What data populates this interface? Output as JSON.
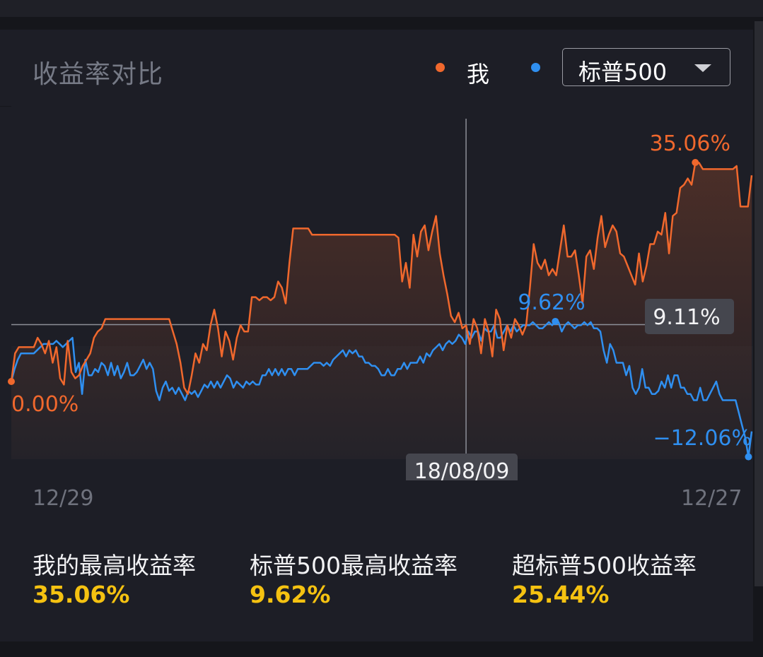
{
  "header": {
    "title": "收益率对比",
    "legend": [
      {
        "label": "我",
        "color": "#f0682d"
      },
      {
        "label": "",
        "color": "#2f8ff0"
      }
    ],
    "benchmark_select": {
      "value": "标普500"
    }
  },
  "chart_data": {
    "type": "line",
    "x_start": "12/29",
    "x_end": "12/27",
    "ylim": [
      -15,
      40
    ],
    "grid": false,
    "series": [
      {
        "name": "我",
        "color": "#f0682d",
        "values": [
          0,
          4.5,
          5.5,
          5.5,
          5.5,
          5.5,
          5.5,
          7,
          6,
          4.5,
          6.5,
          3,
          5.5,
          0.5,
          -0.5,
          6.5,
          1.5,
          0.5,
          1,
          2.5,
          3.5,
          4.5,
          7,
          8,
          8.5,
          10,
          10,
          10,
          10,
          10,
          10,
          10,
          10,
          10,
          10,
          10,
          10,
          10,
          10,
          10,
          10,
          10,
          10,
          8,
          6,
          3,
          -1,
          -2,
          1,
          4.5,
          3,
          6,
          5,
          9,
          11.5,
          8.5,
          4,
          8,
          6.5,
          3.5,
          7,
          9,
          8,
          8,
          13.5,
          13.5,
          13,
          13.5,
          13.5,
          13,
          13.5,
          16,
          15,
          12.5,
          19,
          24.5,
          24.5,
          24.5,
          24.5,
          24.5,
          23.5,
          23.5,
          23.5,
          23.5,
          23.5,
          23.5,
          23.5,
          23.5,
          23.5,
          23.5,
          23.5,
          23.5,
          23.5,
          23.5,
          23.5,
          23.5,
          23.5,
          23.5,
          23.5,
          23.5,
          23.5,
          23.5,
          23.5,
          23,
          16,
          19,
          15,
          23.5,
          20,
          24,
          25,
          21,
          24,
          26.5,
          20.5,
          17,
          14,
          10.5,
          9.5,
          11,
          8.5,
          9,
          6,
          10,
          8.5,
          4.5,
          10,
          8,
          4,
          11.5,
          10,
          5,
          9,
          7,
          10,
          9,
          7.5,
          9,
          15,
          22,
          19,
          18,
          19.5,
          17,
          18,
          17,
          21,
          25,
          20,
          20,
          21,
          17,
          12.5,
          20,
          21,
          18,
          23,
          26.5,
          21.5,
          23.5,
          25,
          24,
          20.5,
          20,
          18.5,
          17,
          15.5,
          20.5,
          16,
          18.5,
          22,
          22,
          24,
          23.5,
          27,
          20.5,
          26.5,
          27,
          31,
          31.5,
          32.5,
          31.5,
          35.06,
          35,
          34,
          34,
          34,
          34,
          34,
          34,
          34,
          34,
          34,
          34.5,
          28,
          28,
          28,
          33
        ]
      },
      {
        "name": "标普500",
        "color": "#2f8ff0",
        "values": [
          0,
          2,
          3.5,
          4.5,
          4.5,
          4.5,
          4.5,
          4.5,
          5,
          5.5,
          6,
          6,
          6,
          6,
          6.5,
          6,
          5.5,
          6,
          6.5,
          7,
          1.5,
          3,
          -2,
          3.5,
          1,
          1,
          2,
          1.5,
          3,
          2.5,
          1,
          3,
          1,
          2.5,
          0.5,
          1.5,
          3,
          1,
          1,
          1.5,
          2.5,
          3.5,
          2,
          3,
          2,
          -1.5,
          -3,
          -1,
          0,
          -1.5,
          -1,
          -2,
          -1,
          -2,
          -3,
          -1.5,
          -2,
          -1.5,
          -2.5,
          -1.5,
          -0.5,
          -1,
          0,
          -1,
          0,
          -1,
          0,
          1,
          0.5,
          -1,
          0,
          -0.5,
          -1,
          0,
          -0.5,
          0,
          -0.5,
          -0.5,
          1,
          1,
          2,
          1,
          2,
          1,
          2,
          1,
          2,
          2,
          1,
          2,
          2,
          2,
          2,
          2.5,
          3,
          3,
          3,
          2.5,
          3,
          2.5,
          3.5,
          4,
          4.5,
          5,
          4,
          5,
          4.5,
          5,
          4,
          4,
          3,
          3,
          2.5,
          2.5,
          2,
          1,
          1,
          2,
          1,
          1,
          2,
          2,
          3,
          2,
          3,
          3,
          3,
          4,
          3,
          4.5,
          4,
          5,
          5.5,
          6,
          5,
          6,
          6.5,
          6,
          6.5,
          7.5,
          7,
          6,
          8,
          7,
          8,
          8,
          6.5,
          8.5,
          8,
          8,
          9,
          7,
          7,
          8,
          9,
          8,
          9,
          8,
          8.5,
          9,
          9,
          9,
          9.5,
          9,
          8.5,
          8.5,
          9,
          9.5,
          9,
          9.62,
          9.5,
          8,
          9,
          9.5,
          9,
          8.5,
          9,
          9,
          9.5,
          9,
          9.5,
          8.5,
          8.5,
          8,
          5,
          3,
          6,
          5,
          3,
          3,
          3,
          1,
          2.5,
          -1,
          -2,
          -1,
          2,
          -1,
          -1,
          -2,
          -2,
          -1.5,
          0,
          -1,
          1,
          -1,
          1,
          1,
          -1,
          -1,
          -2,
          -2,
          -3,
          -3,
          -1,
          -3,
          -3,
          -2,
          -1,
          0,
          -2,
          -3,
          -3,
          -3,
          -3,
          -3,
          -5,
          -7,
          -9,
          -12.06,
          -8
        ]
      }
    ],
    "annotations": {
      "me_start": "0.00%",
      "me_max": "35.06%",
      "bench_max": "9.62%",
      "bench_end": "−12.06%",
      "crosshair_date": "18/08/09",
      "crosshair_value": "9.11%"
    }
  },
  "stats": [
    {
      "label": "我的最高收益率",
      "value": "35.06%"
    },
    {
      "label": "标普500最高收益率",
      "value": "9.62%"
    },
    {
      "label": "超标普500收益率",
      "value": "25.44%"
    }
  ]
}
